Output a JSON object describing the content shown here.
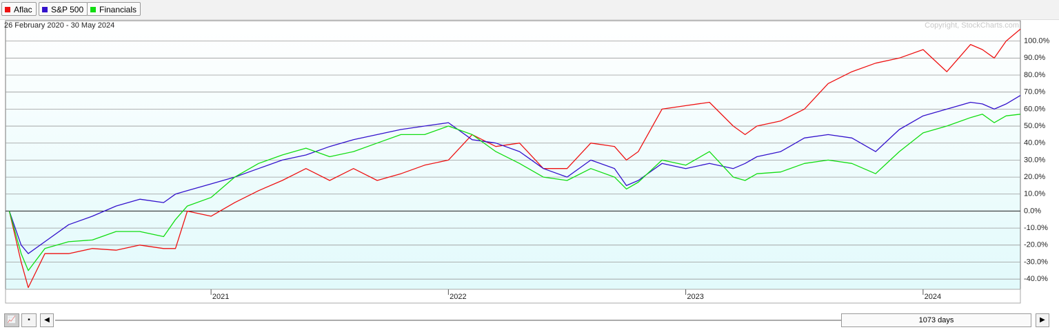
{
  "chart_data": {
    "type": "line",
    "subtitle": "26 February 2020 - 30 May 2024",
    "copyright": "Copyright, StockCharts.com",
    "range_label": "1073 days",
    "legend": "top-left",
    "grid": true,
    "y_axis_side": "right",
    "x": [
      2020.15,
      2020.2,
      2020.23,
      2020.3,
      2020.4,
      2020.5,
      2020.6,
      2020.7,
      2020.8,
      2020.85,
      2020.9,
      2021.0,
      2021.1,
      2021.2,
      2021.3,
      2021.4,
      2021.5,
      2021.6,
      2021.7,
      2021.8,
      2021.9,
      2022.0,
      2022.1,
      2022.2,
      2022.3,
      2022.4,
      2022.5,
      2022.6,
      2022.7,
      2022.75,
      2022.8,
      2022.9,
      2023.0,
      2023.1,
      2023.2,
      2023.25,
      2023.3,
      2023.4,
      2023.5,
      2023.6,
      2023.7,
      2023.8,
      2023.9,
      2024.0,
      2024.1,
      2024.2,
      2024.25,
      2024.3,
      2024.35,
      2024.41
    ],
    "series": [
      {
        "name": "Aflac",
        "color": "#ee1111",
        "values": [
          0,
          -30,
          -45,
          -25,
          -25,
          -22,
          -23,
          -20,
          -22,
          -22,
          0,
          -3,
          5,
          12,
          18,
          25,
          18,
          25,
          18,
          22,
          27,
          30,
          45,
          38,
          40,
          25,
          25,
          40,
          38,
          30,
          35,
          60,
          62,
          64,
          50,
          45,
          50,
          53,
          60,
          75,
          82,
          87,
          90,
          95,
          82,
          98,
          95,
          90,
          100,
          107
        ]
      },
      {
        "name": "S&P 500",
        "color": "#3311cc",
        "values": [
          0,
          -20,
          -25,
          -18,
          -8,
          -3,
          3,
          7,
          5,
          10,
          12,
          16,
          20,
          25,
          30,
          33,
          38,
          42,
          45,
          48,
          50,
          52,
          42,
          40,
          35,
          25,
          20,
          30,
          25,
          15,
          18,
          28,
          25,
          28,
          25,
          28,
          32,
          35,
          43,
          45,
          43,
          35,
          48,
          56,
          60,
          64,
          63,
          60,
          63,
          68
        ]
      },
      {
        "name": "Financials",
        "color": "#11dd11",
        "values": [
          0,
          -25,
          -35,
          -22,
          -18,
          -17,
          -12,
          -12,
          -15,
          -5,
          3,
          8,
          20,
          28,
          33,
          37,
          32,
          35,
          40,
          45,
          45,
          50,
          45,
          35,
          28,
          20,
          18,
          25,
          20,
          13,
          17,
          30,
          27,
          35,
          20,
          18,
          22,
          23,
          28,
          30,
          28,
          22,
          35,
          46,
          50,
          55,
          57,
          52,
          56,
          57
        ]
      }
    ],
    "xlim": [
      2020.134,
      2024.41
    ],
    "xticks": [
      2021,
      2022,
      2023,
      2024
    ],
    "ylim": [
      -46,
      112
    ],
    "yticks": [
      {
        "value": -40,
        "label": "-40.0%"
      },
      {
        "value": -30,
        "label": "-30.0%"
      },
      {
        "value": -20,
        "label": "-20.0%"
      },
      {
        "value": -10,
        "label": "-10.0%"
      },
      {
        "value": 0,
        "label": "0.0%"
      },
      {
        "value": 10,
        "label": "10.0%"
      },
      {
        "value": 20,
        "label": "20.0%"
      },
      {
        "value": 30,
        "label": "30.0%"
      },
      {
        "value": 40,
        "label": "40.0%"
      },
      {
        "value": 50,
        "label": "50.0%"
      },
      {
        "value": 60,
        "label": "60.0%"
      },
      {
        "value": 70,
        "label": "70.0%"
      },
      {
        "value": 80,
        "label": "80.0%"
      },
      {
        "value": 90,
        "label": "90.0%"
      },
      {
        "value": 100,
        "label": "100.0%"
      }
    ]
  }
}
